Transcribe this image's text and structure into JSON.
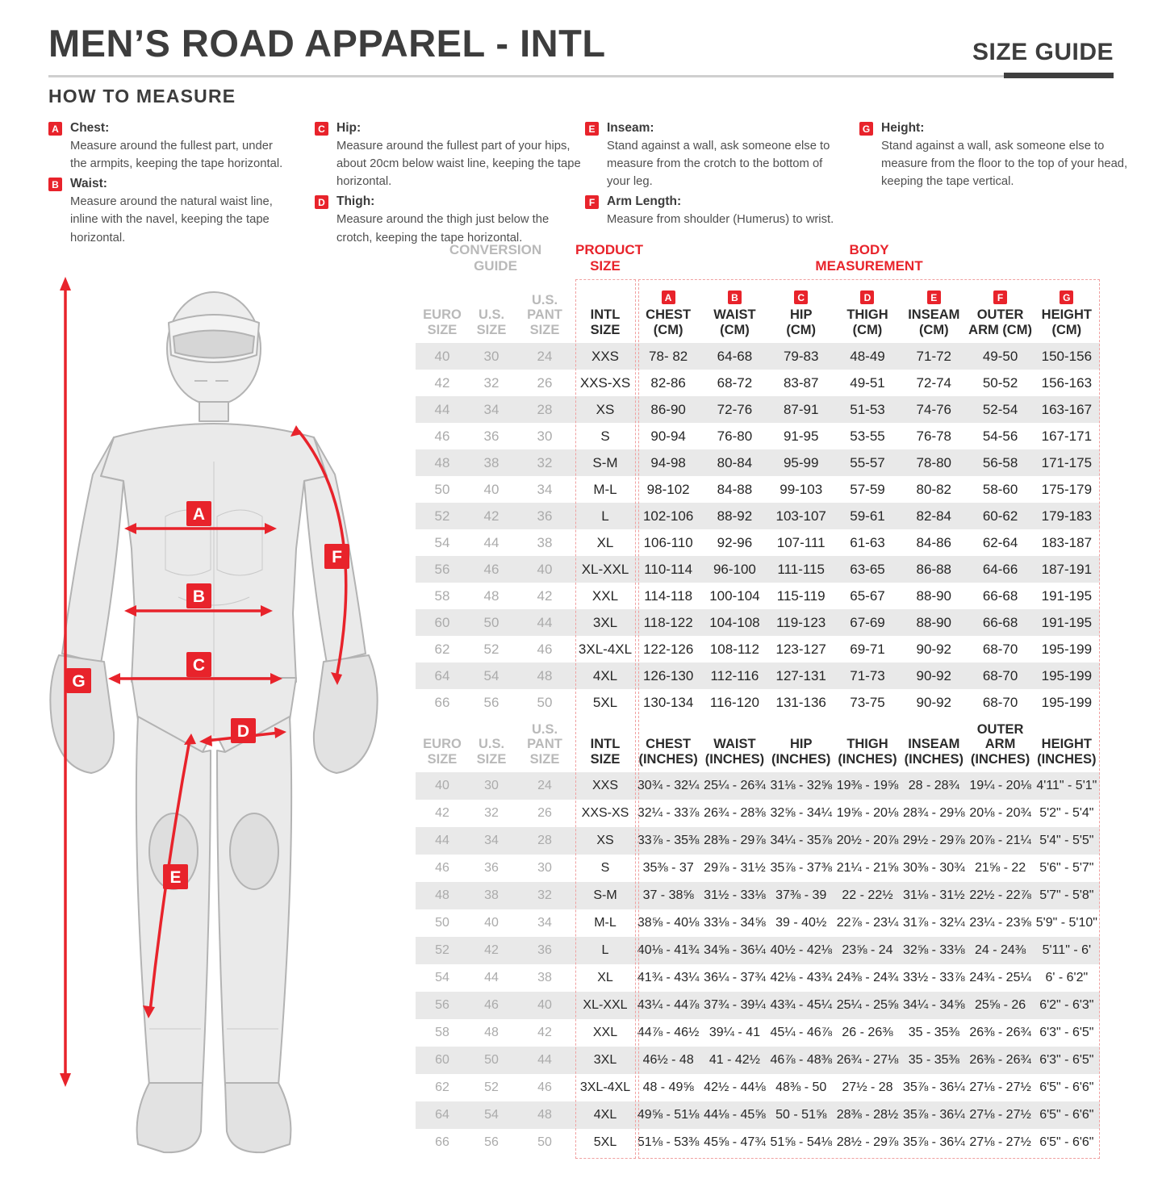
{
  "header": {
    "title": "MEN’S ROAD APPAREL - INTL",
    "size_guide_label": "SIZE GUIDE"
  },
  "how_to_measure": {
    "title": "HOW TO MEASURE",
    "columns": [
      {
        "items": [
          {
            "letter": "A",
            "label": "Chest:",
            "text": "Measure around the fullest part, under the armpits, keeping the tape horizontal."
          },
          {
            "letter": "B",
            "label": "Waist:",
            "text": "Measure around the natural waist line, inline with the navel, keeping the tape horizontal."
          }
        ]
      },
      {
        "items": [
          {
            "letter": "C",
            "label": "Hip:",
            "text": "Measure around the fullest part of your hips, about 20cm below waist line, keeping the tape horizontal."
          },
          {
            "letter": "D",
            "label": "Thigh:",
            "text": "Measure around the thigh just below the crotch, keeping the tape horizontal."
          }
        ]
      },
      {
        "items": [
          {
            "letter": "E",
            "label": "Inseam:",
            "text": "Stand against a wall, ask someone else to measure from the crotch to the bottom of your leg."
          },
          {
            "letter": "F",
            "label": "Arm Length:",
            "text": "Measure from shoulder (Humerus) to wrist."
          }
        ]
      },
      {
        "items": [
          {
            "letter": "G",
            "label": "Height:",
            "text": "Stand against a wall, ask someone else to measure from the floor to the top of your head, keeping the tape vertical."
          }
        ]
      }
    ]
  },
  "figure": {
    "markers": [
      "A",
      "B",
      "C",
      "D",
      "E",
      "F",
      "G"
    ]
  },
  "table": {
    "conversion_header": "CONVERSION\nGUIDE",
    "product_header": "PRODUCT\nSIZE",
    "body_header": "BODY\nMEASUREMENT",
    "conversion_columns": [
      "EURO\nSIZE",
      "U.S.\nSIZE",
      "U.S.\nPANT SIZE"
    ],
    "intl_column": "INTL\nSIZE",
    "letters": [
      "A",
      "B",
      "C",
      "D",
      "E",
      "F",
      "G"
    ],
    "cm_columns": [
      "CHEST\n(CM)",
      "WAIST\n(CM)",
      "HIP\n(CM)",
      "THIGH\n(CM)",
      "INSEAM\n(CM)",
      "OUTER\nARM (CM)",
      "HEIGHT\n(CM)"
    ],
    "inch_columns": [
      "CHEST\n(INCHES)",
      "WAIST\n(INCHES)",
      "HIP\n(INCHES)",
      "THIGH\n(INCHES)",
      "INSEAM\n(INCHES)",
      "OUTER ARM\n(INCHES)",
      "HEIGHT\n(INCHES)"
    ],
    "cm_rows": [
      {
        "euro": "40",
        "us": "30",
        "pant": "24",
        "intl": "XXS",
        "values": [
          "78- 82",
          "64-68",
          "79-83",
          "48-49",
          "71-72",
          "49-50",
          "150-156"
        ]
      },
      {
        "euro": "42",
        "us": "32",
        "pant": "26",
        "intl": "XXS-XS",
        "values": [
          "82-86",
          "68-72",
          "83-87",
          "49-51",
          "72-74",
          "50-52",
          "156-163"
        ]
      },
      {
        "euro": "44",
        "us": "34",
        "pant": "28",
        "intl": "XS",
        "values": [
          "86-90",
          "72-76",
          "87-91",
          "51-53",
          "74-76",
          "52-54",
          "163-167"
        ]
      },
      {
        "euro": "46",
        "us": "36",
        "pant": "30",
        "intl": "S",
        "values": [
          "90-94",
          "76-80",
          "91-95",
          "53-55",
          "76-78",
          "54-56",
          "167-171"
        ]
      },
      {
        "euro": "48",
        "us": "38",
        "pant": "32",
        "intl": "S-M",
        "values": [
          "94-98",
          "80-84",
          "95-99",
          "55-57",
          "78-80",
          "56-58",
          "171-175"
        ]
      },
      {
        "euro": "50",
        "us": "40",
        "pant": "34",
        "intl": "M-L",
        "values": [
          "98-102",
          "84-88",
          "99-103",
          "57-59",
          "80-82",
          "58-60",
          "175-179"
        ]
      },
      {
        "euro": "52",
        "us": "42",
        "pant": "36",
        "intl": "L",
        "values": [
          "102-106",
          "88-92",
          "103-107",
          "59-61",
          "82-84",
          "60-62",
          "179-183"
        ]
      },
      {
        "euro": "54",
        "us": "44",
        "pant": "38",
        "intl": "XL",
        "values": [
          "106-110",
          "92-96",
          "107-111",
          "61-63",
          "84-86",
          "62-64",
          "183-187"
        ]
      },
      {
        "euro": "56",
        "us": "46",
        "pant": "40",
        "intl": "XL-XXL",
        "values": [
          "110-114",
          "96-100",
          "111-115",
          "63-65",
          "86-88",
          "64-66",
          "187-191"
        ]
      },
      {
        "euro": "58",
        "us": "48",
        "pant": "42",
        "intl": "XXL",
        "values": [
          "114-118",
          "100-104",
          "115-119",
          "65-67",
          "88-90",
          "66-68",
          "191-195"
        ]
      },
      {
        "euro": "60",
        "us": "50",
        "pant": "44",
        "intl": "3XL",
        "values": [
          "118-122",
          "104-108",
          "119-123",
          "67-69",
          "88-90",
          "66-68",
          "191-195"
        ]
      },
      {
        "euro": "62",
        "us": "52",
        "pant": "46",
        "intl": "3XL-4XL",
        "values": [
          "122-126",
          "108-112",
          "123-127",
          "69-71",
          "90-92",
          "68-70",
          "195-199"
        ]
      },
      {
        "euro": "64",
        "us": "54",
        "pant": "48",
        "intl": "4XL",
        "values": [
          "126-130",
          "112-116",
          "127-131",
          "71-73",
          "90-92",
          "68-70",
          "195-199"
        ]
      },
      {
        "euro": "66",
        "us": "56",
        "pant": "50",
        "intl": "5XL",
        "values": [
          "130-134",
          "116-120",
          "131-136",
          "73-75",
          "90-92",
          "68-70",
          "195-199"
        ]
      }
    ],
    "inch_rows": [
      {
        "euro": "40",
        "us": "30",
        "pant": "24",
        "intl": "XXS",
        "values": [
          "30¾ - 32¼",
          "25¼ - 26¾",
          "31⅛ - 32⅝",
          "19⅜ - 19⅝",
          "28 - 28¾",
          "19¼ - 20⅛",
          "4'11\" - 5'1\""
        ]
      },
      {
        "euro": "42",
        "us": "32",
        "pant": "26",
        "intl": "XXS-XS",
        "values": [
          "32¼ - 33⅞",
          "26¾ - 28⅜",
          "32⅝ - 34¼",
          "19⅝ - 20⅛",
          "28¾ - 29⅛",
          "20⅛ - 20¾",
          "5'2\" - 5'4\""
        ]
      },
      {
        "euro": "44",
        "us": "34",
        "pant": "28",
        "intl": "XS",
        "values": [
          "33⅞ - 35⅜",
          "28⅜ - 29⅞",
          "34¼ - 35⅞",
          "20½ - 20⅞",
          "29½ - 29⅞",
          "20⅞ - 21¼",
          "5'4\" - 5'5\""
        ]
      },
      {
        "euro": "46",
        "us": "36",
        "pant": "30",
        "intl": "S",
        "values": [
          "35⅜ - 37",
          "29⅞ - 31½",
          "35⅞ - 37⅜",
          "21¼ - 21⅝",
          "30⅜ - 30¾",
          "21⅝ - 22",
          "5'6\" - 5'7\""
        ]
      },
      {
        "euro": "48",
        "us": "38",
        "pant": "32",
        "intl": "S-M",
        "values": [
          "37 - 38⅝",
          "31½ - 33⅛",
          "37⅜ - 39",
          "22 - 22½",
          "31⅛ - 31½",
          "22½ - 22⅞",
          "5'7\" - 5'8\""
        ]
      },
      {
        "euro": "50",
        "us": "40",
        "pant": "34",
        "intl": "M-L",
        "values": [
          "38⅝ - 40⅛",
          "33⅛ - 34⅝",
          "39 - 40½",
          "22⅞ - 23¼",
          "31⅞ - 32¼",
          "23¼ - 23⅝",
          "5'9\" - 5'10\""
        ]
      },
      {
        "euro": "52",
        "us": "42",
        "pant": "36",
        "intl": "L",
        "values": [
          "40⅛ - 41¾",
          "34⅝ - 36¼",
          "40½ - 42⅛",
          "23⅝ - 24",
          "32⅝ - 33⅛",
          "24 - 24⅜",
          "5'11\" - 6'"
        ]
      },
      {
        "euro": "54",
        "us": "44",
        "pant": "38",
        "intl": "XL",
        "values": [
          "41¾ - 43¼",
          "36¼ - 37¾",
          "42⅛ - 43¾",
          "24⅜ - 24¾",
          "33½ - 33⅞",
          "24¾ - 25¼",
          "6' - 6'2\""
        ]
      },
      {
        "euro": "56",
        "us": "46",
        "pant": "40",
        "intl": "XL-XXL",
        "values": [
          "43¼ - 44⅞",
          "37¾ - 39¼",
          "43¾ - 45¼",
          "25¼ - 25⅝",
          "34¼ - 34⅝",
          "25⅝ - 26",
          "6'2\" - 6'3\""
        ]
      },
      {
        "euro": "58",
        "us": "48",
        "pant": "42",
        "intl": "XXL",
        "values": [
          "44⅞ - 46½",
          "39¼ - 41",
          "45¼ - 46⅞",
          "26 - 26⅜",
          "35 - 35⅜",
          "26⅜ - 26¾",
          "6'3\" - 6'5\""
        ]
      },
      {
        "euro": "60",
        "us": "50",
        "pant": "44",
        "intl": "3XL",
        "values": [
          "46½ - 48",
          "41 - 42½",
          "46⅞ - 48⅜",
          "26¾ - 27⅛",
          "35 - 35⅜",
          "26⅜ - 26¾",
          "6'3\" - 6'5\""
        ]
      },
      {
        "euro": "62",
        "us": "52",
        "pant": "46",
        "intl": "3XL-4XL",
        "values": [
          "48 - 49⅝",
          "42½ - 44⅛",
          "48⅜ - 50",
          "27½ - 28",
          "35⅞ - 36¼",
          "27⅛ - 27½",
          "6'5\" - 6'6\""
        ]
      },
      {
        "euro": "64",
        "us": "54",
        "pant": "48",
        "intl": "4XL",
        "values": [
          "49⅝ - 51⅛",
          "44⅛ - 45⅝",
          "50 - 51⅝",
          "28⅜ - 28½",
          "35⅞ - 36¼",
          "27⅛ - 27½",
          "6'5\" - 6'6\""
        ]
      },
      {
        "euro": "66",
        "us": "56",
        "pant": "50",
        "intl": "5XL",
        "values": [
          "51⅛ - 53⅜",
          "45⅝ - 47¾",
          "51⅝ - 54⅛",
          "28½ - 29⅞",
          "35⅞ - 36¼",
          "27⅛ - 27½",
          "6'5\" - 6'6\""
        ]
      }
    ]
  },
  "colors": {
    "accent_red": "#e8232b",
    "dashed_border": "#f0a0a0",
    "row_stripe": "#e9e9e9",
    "muted_gray": "#b9b9b9",
    "text_dark": "#3d3d3d"
  }
}
